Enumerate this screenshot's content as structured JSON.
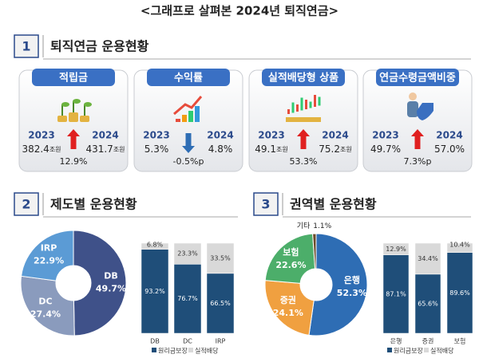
{
  "title": "<그래프로 살펴본 2024년 퇴직연금>",
  "section1": {
    "number": "1",
    "heading": "퇴직연금 운용현황",
    "cards": [
      {
        "label": "적립금",
        "year1": "2023",
        "year2": "2024",
        "value1": "382.4",
        "unit1": "조원",
        "value2": "431.7",
        "unit2": "조원",
        "change": "12.9%",
        "direction": "up"
      },
      {
        "label": "수익률",
        "year1": "2023",
        "year2": "2024",
        "value1": "5.3%",
        "value2": "4.8%",
        "change": "-0.5%p",
        "direction": "down"
      },
      {
        "label": "실적배당형 상품",
        "year1": "2023",
        "year2": "2024",
        "value1": "49.1",
        "unit1": "조원",
        "value2": "75.2",
        "unit2": "조원",
        "change": "53.3%",
        "direction": "up"
      },
      {
        "label": "연금수령금액비중",
        "year1": "2023",
        "year2": "2024",
        "value1": "49.7%",
        "value2": "57.0%",
        "change": "7.3%p",
        "direction": "up"
      }
    ]
  },
  "section2": {
    "number": "2",
    "heading": "제도별 운용현황",
    "donut": {
      "type": "pie",
      "categories": [
        "DB",
        "DC",
        "IRP"
      ],
      "values": [
        49.7,
        27.4,
        22.9
      ],
      "value_labels": [
        "49.7%",
        "27.4%",
        "22.9%"
      ],
      "colors": [
        "#3f5189",
        "#8a9bbd",
        "#5b9bd5"
      ]
    },
    "bars": {
      "type": "bar",
      "stacked": true,
      "categories": [
        "DB",
        "DC",
        "IRP"
      ],
      "ylim": [
        0,
        100
      ],
      "series": [
        {
          "name": "원리금보장",
          "color": "#1f4e79",
          "values": [
            93.2,
            76.7,
            66.5
          ],
          "value_labels": [
            "93.2%",
            "76.7%",
            "66.5%"
          ]
        },
        {
          "name": "실적배당",
          "color": "#d9d9d9",
          "values": [
            6.8,
            23.3,
            33.5
          ],
          "value_labels": [
            "6.8%",
            "23.3%",
            "33.5%"
          ]
        }
      ]
    }
  },
  "section3": {
    "number": "3",
    "heading": "권역별 운용현황",
    "donut": {
      "type": "pie",
      "categories": [
        "은행",
        "증권",
        "보험",
        "기타"
      ],
      "values": [
        52.3,
        24.1,
        22.6,
        1.1
      ],
      "value_labels": [
        "52.3%",
        "24.1%",
        "22.6%",
        "1.1%"
      ],
      "colors": [
        "#2e6db4",
        "#f0a040",
        "#4cae6a",
        "#6b4a2a"
      ]
    },
    "bars": {
      "type": "bar",
      "stacked": true,
      "categories": [
        "은행",
        "증권",
        "보험"
      ],
      "ylim": [
        0,
        100
      ],
      "series": [
        {
          "name": "원리금보장",
          "color": "#1f4e79",
          "values": [
            87.1,
            65.6,
            89.6
          ],
          "value_labels": [
            "87.1%",
            "65.6%",
            "89.6%"
          ]
        },
        {
          "name": "실적배당",
          "color": "#d9d9d9",
          "values": [
            12.9,
            34.4,
            10.4
          ],
          "value_labels": [
            "12.9%",
            "34.4%",
            "10.4%"
          ]
        }
      ]
    }
  }
}
